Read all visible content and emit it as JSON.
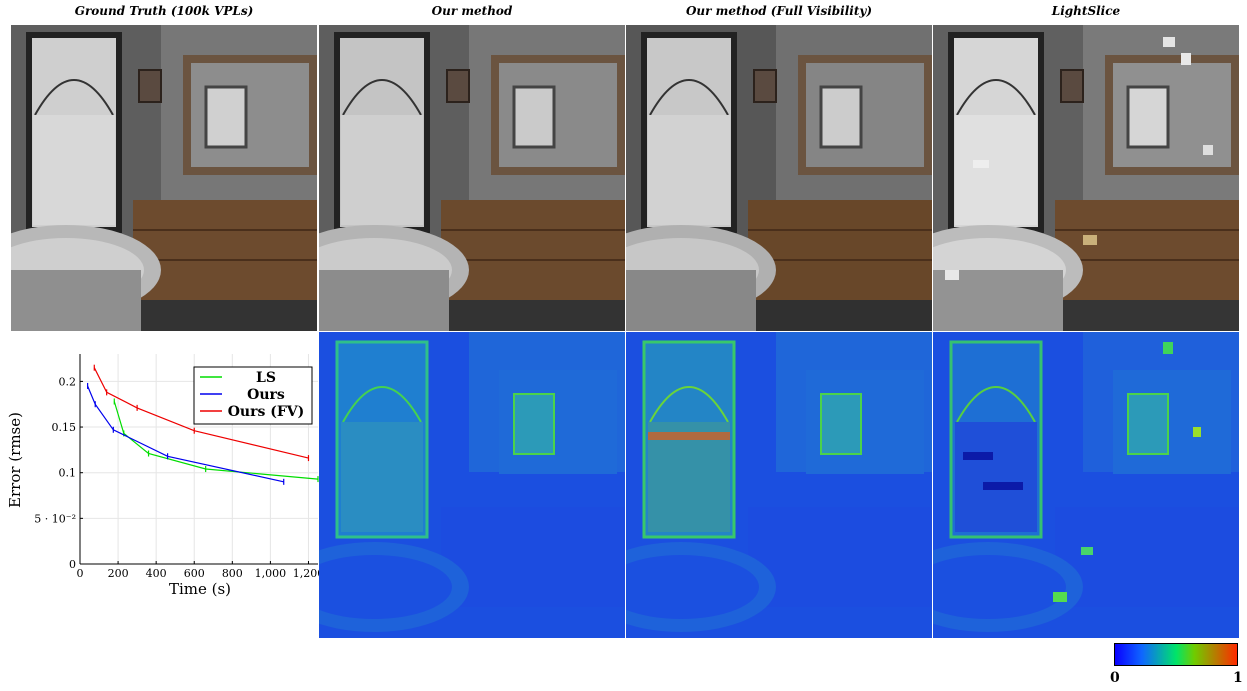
{
  "columns": [
    {
      "title": "Ground Truth (100k VPLs)"
    },
    {
      "title": "Our method"
    },
    {
      "title": "Our method (Full Visibility)"
    },
    {
      "title": "LightSlice"
    }
  ],
  "colorbar": {
    "min_label": "0",
    "max_label": "1"
  },
  "chart_data": {
    "type": "line",
    "xlabel": "Time (s)",
    "ylabel": "Error (rmse)",
    "xlim": [
      0,
      1250
    ],
    "ylim": [
      0,
      0.23
    ],
    "xticks": [
      0,
      200,
      400,
      600,
      800,
      1000,
      1200
    ],
    "xtick_labels": [
      "0",
      "200",
      "400",
      "600",
      "800",
      "1,000",
      "1,200"
    ],
    "yticks": [
      0,
      0.05,
      0.1,
      0.15,
      0.2
    ],
    "ytick_labels": [
      "0",
      "5 · 10⁻²",
      "0.1",
      "0.15",
      "0.2"
    ],
    "grid": true,
    "legend": "top-right",
    "series": [
      {
        "name": "LS",
        "color": "#00dd00",
        "x": [
          180,
          230,
          360,
          660,
          1250
        ],
        "y": [
          0.178,
          0.143,
          0.121,
          0.104,
          0.093
        ]
      },
      {
        "name": "Ours",
        "color": "#0000ee",
        "x": [
          40,
          80,
          175,
          460,
          1070
        ],
        "y": [
          0.195,
          0.175,
          0.147,
          0.118,
          0.09
        ]
      },
      {
        "name": "Ours (FV)",
        "color": "#ee0000",
        "x": [
          75,
          140,
          300,
          600,
          1200
        ],
        "y": [
          0.215,
          0.188,
          0.171,
          0.146,
          0.116
        ]
      }
    ]
  }
}
